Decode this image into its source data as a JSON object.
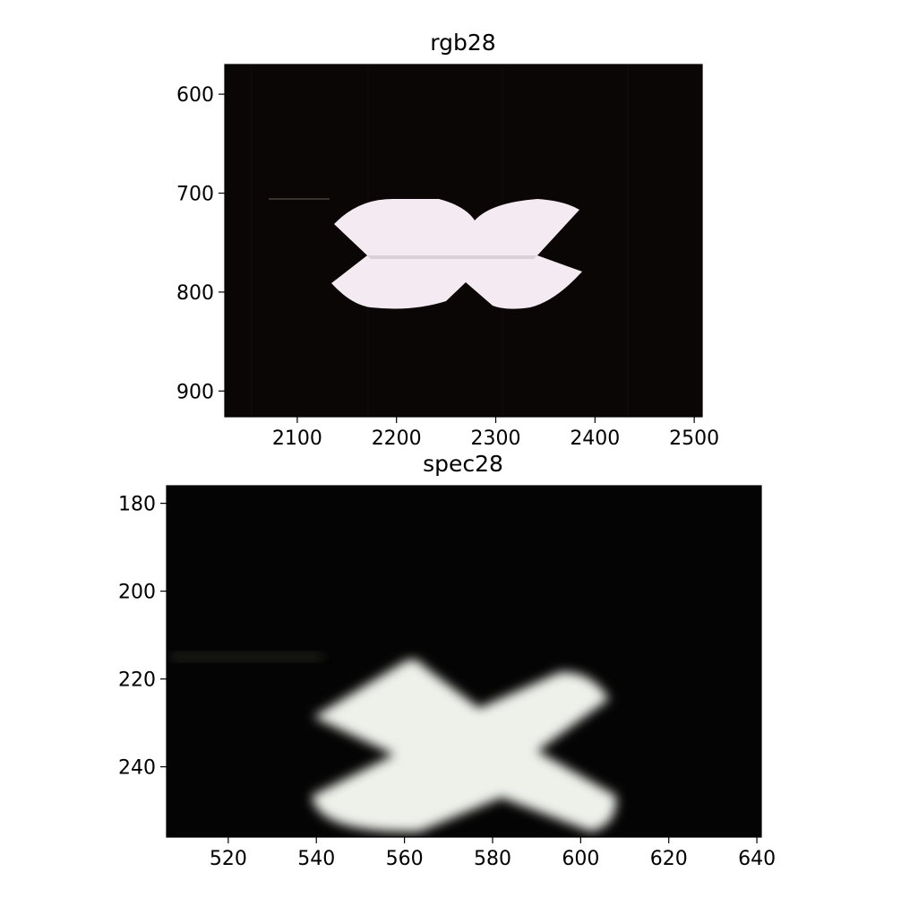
{
  "chart_data": [
    {
      "type": "image",
      "title": "rgb28",
      "xlim": [
        2027,
        2508
      ],
      "ylim": [
        926,
        570
      ],
      "xticks": [
        2100,
        2200,
        2300,
        2400,
        2500
      ],
      "yticks": [
        600,
        700,
        800,
        900
      ],
      "grid": false,
      "image_content": "white bow-tie / X shaped object on black background",
      "background_color": "#0b0606",
      "object_color": "#f4eaf2"
    },
    {
      "type": "image",
      "title": "spec28",
      "xlim": [
        506,
        641
      ],
      "ylim": [
        256,
        176
      ],
      "xticks": [
        520,
        540,
        560,
        580,
        600,
        620,
        640
      ],
      "yticks": [
        180,
        200,
        220,
        240
      ],
      "grid": false,
      "image_content": "blurred white X shaped object on black background",
      "background_color": "#040404",
      "object_color": "#eef0ea"
    }
  ]
}
